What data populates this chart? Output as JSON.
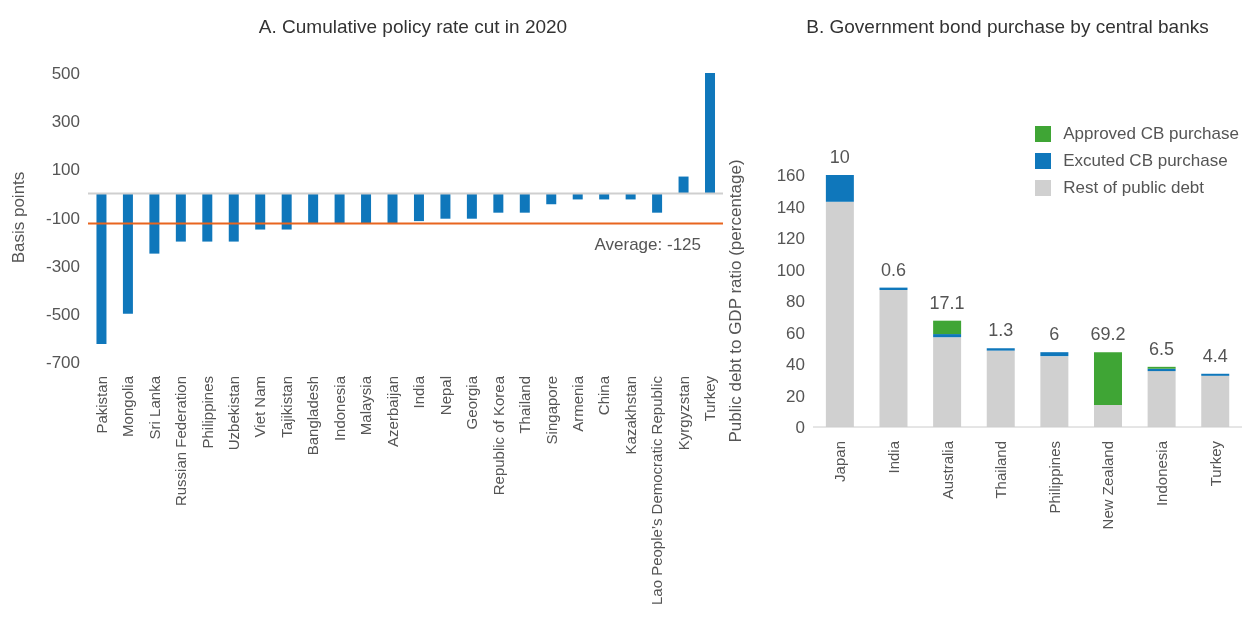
{
  "chart_data": [
    {
      "type": "bar",
      "title": "A. Cumulative policy rate cut in 2020",
      "ylabel": "Basis points",
      "categories": [
        "Pakistan",
        "Mongolia",
        "Sri Lanka",
        "Russian Federation",
        "Philippines",
        "Uzbekistan",
        "Viet Nam",
        "Tajikistan",
        "Bangladesh",
        "Indonesia",
        "Malaysia",
        "Azerbaijan",
        "India",
        "Nepal",
        "Georgia",
        "Republic of Korea",
        "Thailand",
        "Singapore",
        "Armenia",
        "China",
        "Kazakhstan",
        "Lao People’s Democratic Republic",
        "Kyrgyzstan",
        "Turkey"
      ],
      "values": [
        -625,
        -500,
        -250,
        -200,
        -200,
        -200,
        -150,
        -150,
        -125,
        -125,
        -125,
        -125,
        -115,
        -105,
        -105,
        -80,
        -80,
        -45,
        -25,
        -25,
        -25,
        -80,
        70,
        500
      ],
      "color": "#0f77bb",
      "ylim": [
        -700,
        500
      ],
      "yticks": [
        -700,
        -500,
        -300,
        -100,
        100,
        300,
        500
      ],
      "ref_lines": [
        {
          "axis": "y",
          "value": -125,
          "label": "Average: -125",
          "color": "#e8651f"
        }
      ]
    },
    {
      "type": "bar",
      "stacked": true,
      "title": "B. Government bond purchase by central banks",
      "ylabel": "Public debt to GDP ratio (percentage)",
      "categories": [
        "Japan",
        "India",
        "Australia",
        "Thailand",
        "Philippines",
        "New Zealand",
        "Indonesia",
        "Turkey"
      ],
      "series": [
        {
          "name": "Rest of public debt",
          "color": "#d0d0d0",
          "values": [
            143,
            87,
            57,
            48.5,
            45,
            14,
            35.5,
            32.5
          ]
        },
        {
          "name": "Excuted CB purchase",
          "color": "#0f77bb",
          "values": [
            17,
            1.5,
            2,
            1.5,
            2.5,
            0,
            1.5,
            1.3
          ]
        },
        {
          "name": "Approved CB purchase",
          "color": "#3fa535",
          "values": [
            0,
            0,
            8.5,
            0,
            0,
            33.5,
            1.2,
            0
          ]
        }
      ],
      "ylim": [
        0,
        160
      ],
      "yticks": [
        0,
        20,
        40,
        60,
        80,
        100,
        120,
        140,
        160
      ],
      "legend": "top right",
      "annotations": [
        {
          "text": "10",
          "x": "Japan",
          "y": 160
        },
        {
          "text": "0.6",
          "x": "India",
          "y": 88.5
        },
        {
          "text": "17.1",
          "x": "Australia",
          "y": 67.5
        },
        {
          "text": "1.3",
          "x": "Thailand",
          "y": 50
        },
        {
          "text": "6",
          "x": "Philippines",
          "y": 47.5
        },
        {
          "text": "69.2",
          "x": "New Zealand",
          "y": 47.5
        },
        {
          "text": "6.5",
          "x": "Indonesia",
          "y": 38.2
        },
        {
          "text": "4.4",
          "x": "Turkey",
          "y": 33.8
        }
      ]
    }
  ]
}
